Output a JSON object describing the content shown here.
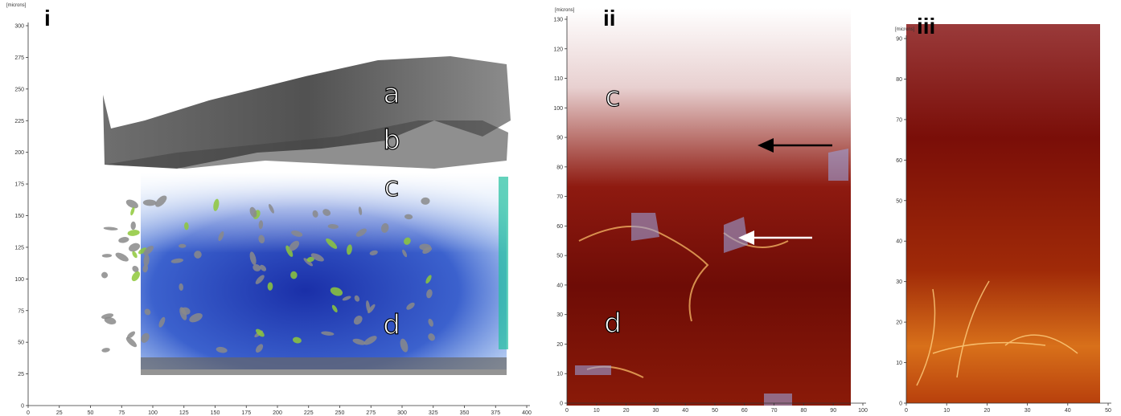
{
  "panels": [
    {
      "label": "i",
      "axis_unit": "[microns]",
      "yticks": [
        0,
        25,
        50,
        75,
        100,
        125,
        150,
        175,
        200,
        225,
        250,
        275,
        300
      ],
      "xticks": [
        0,
        25,
        50,
        75,
        100,
        125,
        150,
        175,
        200,
        225,
        250,
        275,
        300,
        325,
        350,
        375,
        400
      ],
      "annotations": [
        "a",
        "b",
        "c",
        "d"
      ]
    },
    {
      "label": "ii",
      "axis_unit": "[microns]",
      "yticks": [
        0,
        10,
        20,
        30,
        40,
        50,
        60,
        70,
        80,
        90,
        100,
        110,
        120,
        130
      ],
      "xticks": [
        0,
        10,
        20,
        30,
        40,
        50,
        60,
        70,
        80,
        90,
        100
      ],
      "annotations": [
        "c",
        "d"
      ]
    },
    {
      "label": "iii",
      "axis_unit": "[microns]",
      "yticks": [
        0,
        10,
        20,
        30,
        40,
        50,
        60,
        70,
        80,
        90
      ],
      "xticks": [
        0,
        10,
        20,
        30,
        40,
        50
      ],
      "annotations": []
    }
  ]
}
